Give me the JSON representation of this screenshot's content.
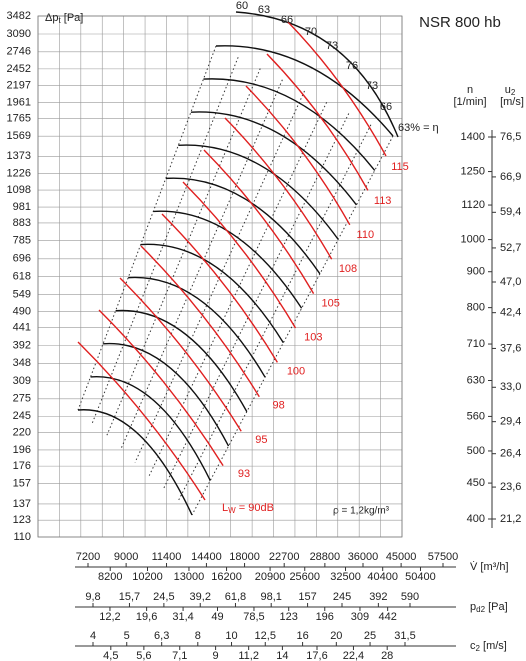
{
  "chart_data": {
    "type": "fan-nomogram",
    "title": "NSR 800 hb",
    "density_note": "ρ = 1,2kg/m³",
    "pressure_axis": {
      "label": {
        "symbol": "Δp",
        "sub": "t",
        "unit": "[Pa]"
      },
      "scale": "log",
      "lim": [
        110,
        3482
      ],
      "ticks": [
        110,
        123,
        137,
        157,
        176,
        196,
        220,
        245,
        275,
        309,
        348,
        392,
        441,
        490,
        549,
        618,
        696,
        785,
        883,
        981,
        1098,
        1226,
        1373,
        1569,
        1765,
        1961,
        2197,
        2452,
        2746,
        3090,
        3482
      ]
    },
    "speed_axis": {
      "label": {
        "symbol": "n",
        "unit": "[1/min]"
      },
      "scale": "log",
      "lim": [
        400,
        1400
      ],
      "ticks": [
        400,
        450,
        500,
        560,
        630,
        710,
        800,
        900,
        1000,
        1120,
        1250,
        1400
      ]
    },
    "tip_speed_axis": {
      "label": {
        "symbol": "u",
        "sub": "2",
        "unit": "[m/s]"
      },
      "scale": "log",
      "lim": [
        21.2,
        76.5
      ],
      "ticks": [
        {
          "value": 21.2,
          "label": "21,2"
        },
        {
          "value": 23.6,
          "label": "23,6"
        },
        {
          "value": 26.4,
          "label": "26,4"
        },
        {
          "value": 29.4,
          "label": "29,4"
        },
        {
          "value": 33.0,
          "label": "33,0"
        },
        {
          "value": 37.6,
          "label": "37,6"
        },
        {
          "value": 42.4,
          "label": "42,4"
        },
        {
          "value": 47.0,
          "label": "47,0"
        },
        {
          "value": 52.7,
          "label": "52,7"
        },
        {
          "value": 59.4,
          "label": "59,4"
        },
        {
          "value": 66.9,
          "label": "66,9"
        },
        {
          "value": 76.5,
          "label": "76,5"
        }
      ]
    },
    "flow_axis": {
      "label": {
        "symbol": "V̇",
        "unit": "[m³/h]"
      },
      "scale": "log",
      "lim": [
        7200,
        57500
      ],
      "ticks": [
        7200,
        8200,
        9000,
        10200,
        11400,
        13000,
        14400,
        16200,
        18000,
        20900,
        22700,
        25600,
        28800,
        32500,
        36000,
        40400,
        45000,
        50400,
        57500
      ]
    },
    "dynamic_pressure_axis": {
      "label": {
        "symbol": "p",
        "sub": "d2",
        "unit": "[Pa]"
      },
      "scale": "log",
      "lim": [
        9.8,
        590
      ],
      "ticks": [
        {
          "value": 9.8,
          "label": "9,8"
        },
        {
          "value": 12.2,
          "label": "12,2"
        },
        {
          "value": 15.7,
          "label": "15,7"
        },
        {
          "value": 19.6,
          "label": "19,6"
        },
        {
          "value": 24.5,
          "label": "24,5"
        },
        {
          "value": 31.4,
          "label": "31,4"
        },
        {
          "value": 39.2,
          "label": "39,2"
        },
        49,
        {
          "value": 61.8,
          "label": "61,8"
        },
        {
          "value": 78.5,
          "label": "78,5"
        },
        {
          "value": 98.1,
          "label": "98,1"
        },
        123,
        157,
        196,
        245,
        309,
        392,
        442,
        590
      ]
    },
    "outlet_velocity_axis": {
      "label": {
        "symbol": "c",
        "sub": "2",
        "unit": "[m/s]"
      },
      "scale": "log",
      "lim": [
        4,
        31.5
      ],
      "ticks": [
        4,
        {
          "value": 4.5,
          "label": "4,5"
        },
        5,
        {
          "value": 5.6,
          "label": "5,6"
        },
        {
          "value": 6.3,
          "label": "6,3"
        },
        {
          "value": 7.1,
          "label": "7,1"
        },
        8,
        9,
        10,
        {
          "value": 11.2,
          "label": "11,2"
        },
        {
          "value": 12.5,
          "label": "12,5"
        },
        14,
        16,
        {
          "value": 17.6,
          "label": "17,6"
        },
        20,
        {
          "value": 22.4,
          "label": "22,4"
        },
        25,
        28,
        {
          "value": 31.5,
          "label": "31,5"
        }
      ]
    },
    "efficiency_labels": [
      60,
      63,
      66,
      70,
      73,
      76,
      73,
      66,
      {
        "value": 63,
        "label": "63% = η"
      }
    ],
    "noise_labels": [
      {
        "value": 90,
        "label": {
          "symbol": "L",
          "sub": "W",
          "text": " = 90dB"
        }
      },
      93,
      95,
      98,
      100,
      103,
      105,
      108,
      110,
      113,
      115
    ],
    "noise_color": "#e02020"
  }
}
